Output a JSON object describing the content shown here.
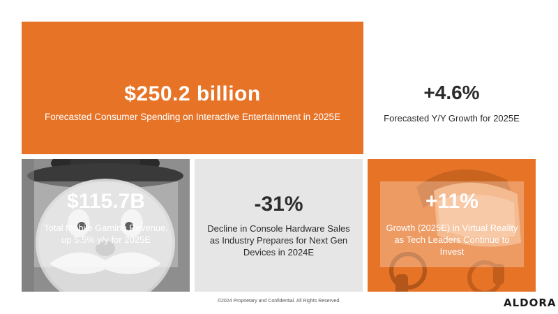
{
  "tiles": {
    "spending": {
      "value": "$250.2 billion",
      "caption": "Forecasted Consumer Spending on Interactive Entertainment in 2025E"
    },
    "growth": {
      "value": "+4.6%",
      "caption": "Forecasted Y/Y Growth for 2025E"
    },
    "mobile": {
      "value": "$115.7B",
      "caption": "Total Mobile Gaming Revenue, up 5.5% y/y for 2025E"
    },
    "console": {
      "value": "-31%",
      "caption": "Decline in Console Hardware Sales as Industry Prepares for Next Gen Devices in 2024E"
    },
    "vr": {
      "value": "+11%",
      "caption": "Growth (2025E) in Virtual Reality as Tech Leaders Continue to Invest"
    }
  },
  "footer": {
    "copyright": "©2024 Proprietary and Confidential. All Rights Reserved.",
    "logo": "ALDORA"
  },
  "colors": {
    "accent": "#E77327",
    "grey_tile": "#e6e6e6"
  }
}
